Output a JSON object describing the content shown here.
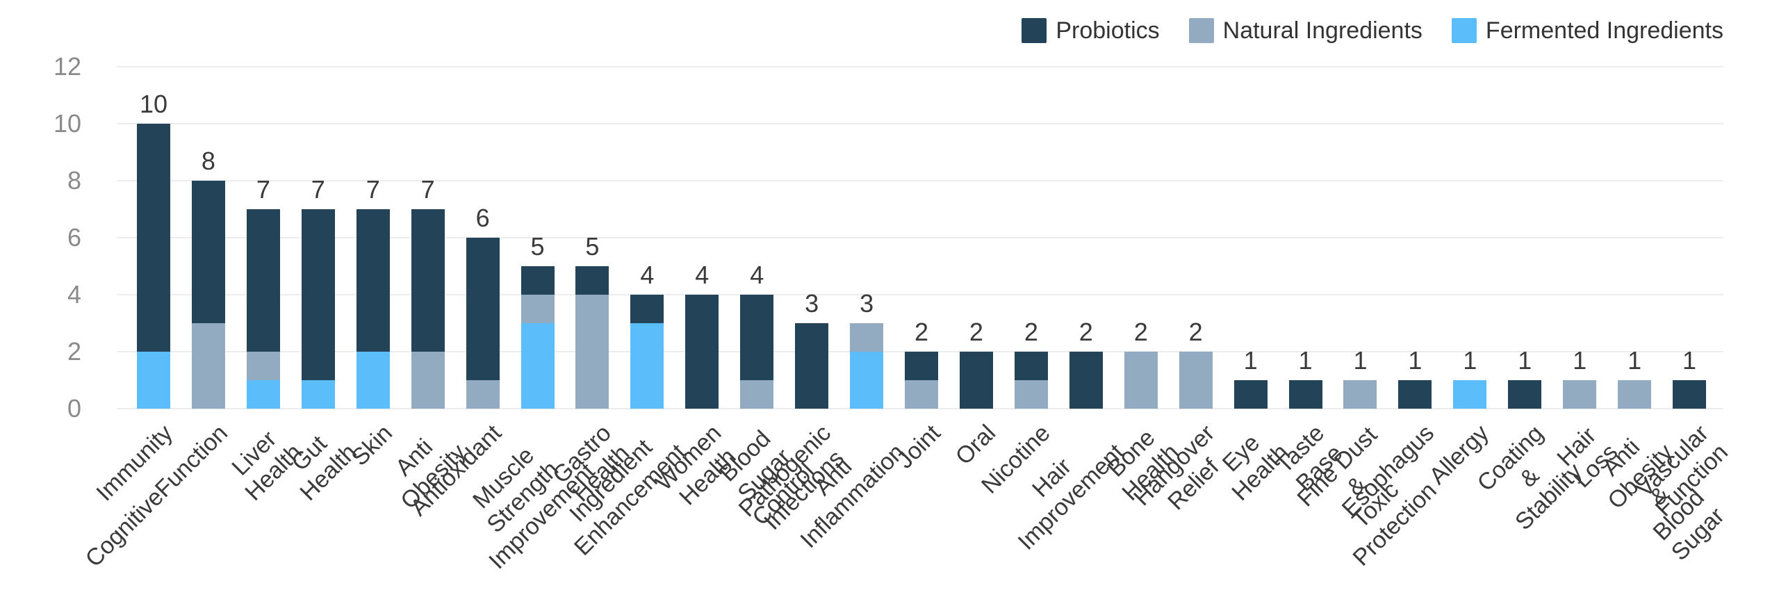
{
  "chart_data": {
    "type": "bar",
    "stacked": true,
    "title": "",
    "xlabel": "",
    "ylabel": "",
    "ylim": [
      0,
      12
    ],
    "y_ticks": [
      0,
      2,
      4,
      6,
      8,
      10,
      12
    ],
    "grid": true,
    "legend_position": "top-right",
    "bar_value_labels": "total shown above each stacked bar",
    "categories": [
      "Immunity",
      "CognitiveFunction",
      "Liver Health",
      "Gut Health",
      "Skin",
      "Anti Obesity",
      "Antioxidant",
      "Muscle Strength Improvement",
      "Gastro Health",
      "Ingredient Enhancement",
      "Women Health",
      "Blood Sugar Control",
      "Pathogenic Infections",
      "Anti Inflammation",
      "Joint",
      "Oral",
      "Nicotine",
      "Hair Improvement",
      "Bone Health",
      "Hangover Relief",
      "Eye Health",
      "Taste Base",
      "Fine Dust & Toxic Protection",
      "Esophagus",
      "Allergy",
      "Coating & Stability",
      "Hair Loss",
      "Anti Obesity & Blood Sugar",
      "Vascular Function"
    ],
    "category_display": [
      "Immunity",
      "CognitiveFunction",
      "Liver Health",
      "Gut Health",
      "Skin",
      "Anti Obesity",
      "Antioxidant",
      "Muscle Strength\nImprovement",
      "Gastro Health",
      "Ingredient\nEnhancement",
      "Women Health",
      "Blood Sugar Control",
      "Pathogenic Infections",
      "Anti Inflammation",
      "Joint",
      "Oral",
      "Nicotine",
      "Hair Improvement",
      "Bone Health",
      "Hangover Relief",
      "Eye Health",
      "Taste Base",
      "Fine Dust &\nToxic Protection",
      "Esophagus",
      "Allergy",
      "Coating & Stability",
      "Hair Loss",
      "Anti Obesity &\nBlood Sugar",
      "Vascular Function"
    ],
    "series": [
      {
        "name": "Probiotics",
        "color": "#234458",
        "values": [
          8,
          5,
          5,
          6,
          5,
          5,
          5,
          1,
          1,
          1,
          4,
          3,
          3,
          0,
          1,
          2,
          1,
          2,
          0,
          0,
          1,
          1,
          0,
          1,
          0,
          1,
          0,
          0,
          1
        ]
      },
      {
        "name": "Natural Ingredients",
        "color": "#92abc1",
        "values": [
          0,
          3,
          1,
          0,
          0,
          2,
          1,
          1,
          4,
          0,
          0,
          1,
          0,
          1,
          1,
          0,
          1,
          0,
          2,
          2,
          0,
          0,
          1,
          0,
          0,
          0,
          1,
          1,
          0
        ]
      },
      {
        "name": "Fermented Ingredients",
        "color": "#5bbdfa",
        "values": [
          2,
          0,
          1,
          1,
          2,
          0,
          0,
          3,
          0,
          3,
          0,
          0,
          0,
          2,
          0,
          0,
          0,
          0,
          0,
          0,
          0,
          0,
          0,
          0,
          1,
          0,
          0,
          0,
          0
        ]
      }
    ],
    "stack_order_bottom_to_top": [
      "Fermented Ingredients",
      "Natural Ingredients",
      "Probiotics"
    ],
    "totals": [
      10,
      8,
      7,
      7,
      7,
      7,
      6,
      5,
      5,
      4,
      4,
      4,
      3,
      3,
      2,
      2,
      2,
      2,
      2,
      2,
      1,
      1,
      1,
      1,
      1,
      1,
      1,
      1,
      1
    ],
    "colors": {
      "grid_line": "#ececec",
      "y_axis_label": "#8a8a8a",
      "value_label": "#3a3a3a",
      "category_label": "#3a3a3a",
      "legend_text": "#333333",
      "background": "#ffffff"
    }
  }
}
